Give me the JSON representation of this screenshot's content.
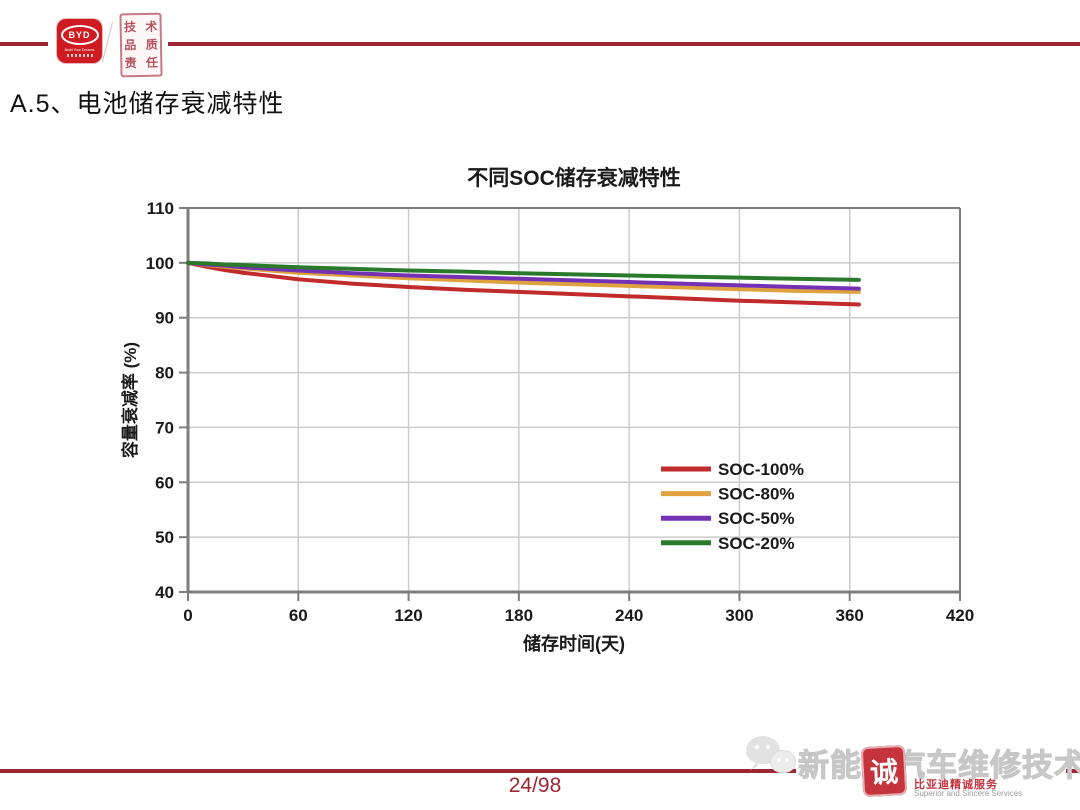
{
  "header": {
    "logo_text": "BYD",
    "logo_tagline": "Build Your Dreams",
    "seal_row1": "技 术",
    "seal_row2": "品 质",
    "seal_row3": "责 任",
    "title": "A.5、电池储存衰减特性"
  },
  "chart_data": {
    "type": "line",
    "title": "不同SOC储存衰减特性",
    "xlabel": "储存时间(天)",
    "ylabel": "容量衰减率 (%)",
    "xlim": [
      0,
      420
    ],
    "ylim": [
      40,
      110
    ],
    "xticks": [
      0,
      60,
      120,
      180,
      240,
      300,
      360,
      420
    ],
    "yticks": [
      40,
      50,
      60,
      70,
      80,
      90,
      100,
      110
    ],
    "grid": true,
    "legend_position": "right-middle",
    "x": [
      0,
      10,
      20,
      30,
      60,
      90,
      120,
      150,
      180,
      210,
      240,
      270,
      300,
      330,
      365
    ],
    "series": [
      {
        "name": "SOC-100%",
        "color": "#c22b2b",
        "values": [
          100,
          99.3,
          98.7,
          98.2,
          97.0,
          96.2,
          95.6,
          95.1,
          94.7,
          94.3,
          93.9,
          93.5,
          93.1,
          92.8,
          92.4
        ]
      },
      {
        "name": "SOC-80%",
        "color": "#e0a23e",
        "values": [
          100,
          99.6,
          99.3,
          99.0,
          98.2,
          97.7,
          97.2,
          96.8,
          96.4,
          96.1,
          95.8,
          95.5,
          95.2,
          94.9,
          94.7
        ]
      },
      {
        "name": "SOC-50%",
        "color": "#7431b4",
        "values": [
          100,
          99.7,
          99.5,
          99.2,
          98.6,
          98.1,
          97.7,
          97.4,
          97.1,
          96.8,
          96.5,
          96.2,
          95.9,
          95.6,
          95.3
        ]
      },
      {
        "name": "SOC-20%",
        "color": "#2b7a2b",
        "values": [
          100,
          99.9,
          99.7,
          99.6,
          99.2,
          98.9,
          98.6,
          98.4,
          98.1,
          97.9,
          97.7,
          97.5,
          97.3,
          97.1,
          96.9
        ]
      }
    ]
  },
  "footer": {
    "page_number": "24/98",
    "watermark_text": "新能源汽车维修技术",
    "watermark_seal_char": "诚",
    "brand_text": "比亚迪精诚服务",
    "brand_subtext": "Superior and Sincere Services"
  },
  "colors": {
    "rule_line": "#9e2533",
    "axis": "#7d7d7d",
    "grid": "#cccccc",
    "tick_label": "#1a1a1a"
  }
}
